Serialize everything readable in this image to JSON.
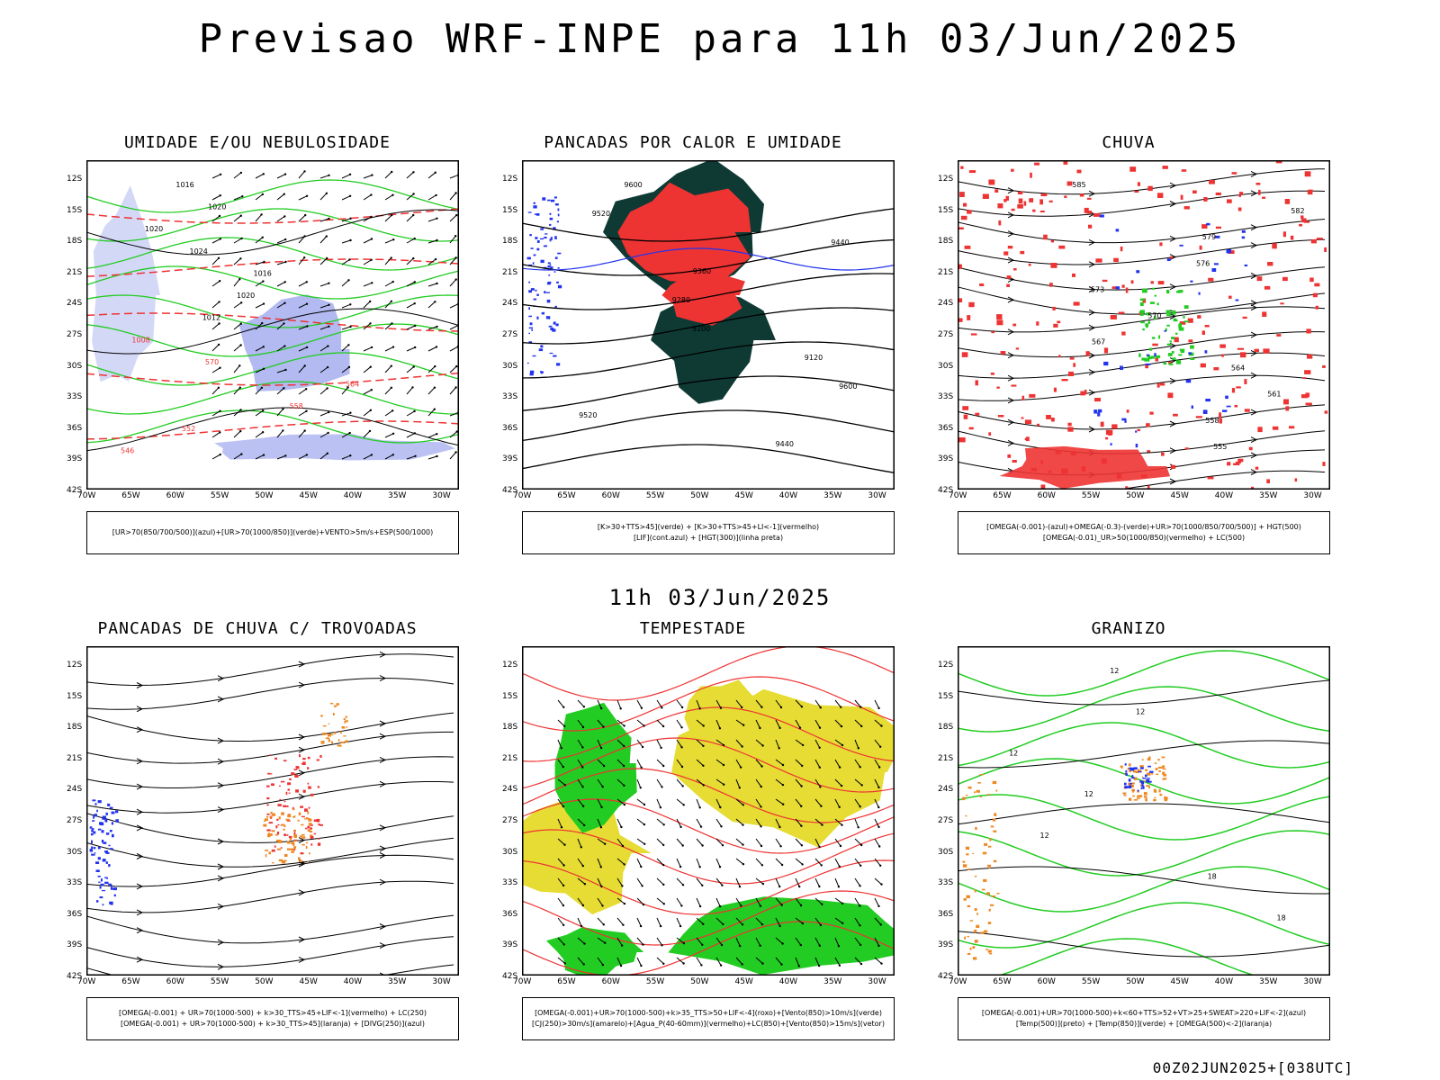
{
  "header": {
    "title": "Previsao WRF-INPE  para 11h 03/Jun/2025",
    "mid_date": "11h 03/Jun/2025",
    "footer": "00Z02JUN2025+[038UTC]"
  },
  "axes": {
    "lat_labels": [
      "12S",
      "15S",
      "18S",
      "21S",
      "24S",
      "27S",
      "30S",
      "33S",
      "36S",
      "39S",
      "42S"
    ],
    "lon_labels": [
      "70W",
      "65W",
      "60W",
      "55W",
      "50W",
      "45W",
      "40W",
      "35W",
      "30W"
    ]
  },
  "colors": {
    "blue": "#2233ee",
    "green": "#22cc22",
    "red": "#ee3333",
    "dark_green": "#0f3a34",
    "orange": "#ee8822",
    "yellow": "#e6dc33",
    "lavender": "#aab2f0",
    "magenta": "#cc22cc"
  },
  "panels": [
    {
      "title": "UMIDADE E/OU NEBULOSIDADE",
      "legend": [
        "[UR>70(850/700/500)](azul)+[UR>70(1000/850)](verde)+VENTO>5m/s+ESP(500/1000)"
      ],
      "labels": [
        "1016",
        "1020",
        "1020",
        "1024",
        "1016",
        "1020",
        "1012",
        "1008",
        "570",
        "564",
        "558",
        "552",
        "546"
      ]
    },
    {
      "title": "PANCADAS POR CALOR E UMIDADE",
      "legend": [
        "[K>30+TTS>45](verde) + [K>30+TTS>45+LI<-1](vermelho)",
        "[LIF](cont.azul) + [HGT(300)](linha preta)"
      ],
      "labels": [
        "9600",
        "9520",
        "9440",
        "9360",
        "9280",
        "9200",
        "9120",
        "9600",
        "9520",
        "9440"
      ]
    },
    {
      "title": "CHUVA",
      "legend": [
        "[OMEGA(-0.001)-(azul)+OMEGA(-0.3)-(verde)+UR>70(1000/850/700/500)] + HGT(500)",
        "[OMEGA(-0.01)_UR>50(1000/850)(vermelho) + LC(500)"
      ],
      "labels": [
        "585",
        "582",
        "579",
        "576",
        "573",
        "570",
        "567",
        "564",
        "561",
        "558",
        "555"
      ]
    },
    {
      "title": "PANCADAS DE CHUVA C/ TROVOADAS",
      "legend": [
        "[OMEGA(-0.001) + UR>70(1000-500) + k>30_TTS>45+LIF<-1](vermelho) + LC(250)",
        "[OMEGA(-0.001) + UR>70(1000-500) + k>30_TTS>45](laranja) + [DIVG(250)](azul)"
      ],
      "labels": []
    },
    {
      "title": "TEMPESTADE",
      "legend": [
        "[OMEGA(-0.001)+UR>70(1000-500)+k>35_TTS>50+LIF<-4](roxo)+[Vento(850)>10m/s](verde)",
        "[CJ(250)>30m/s](amarelo)+[Agua_P(40-60mm)](vermelho)+LC(850)+[Vento(850)>15m/s](vetor)"
      ],
      "labels": []
    },
    {
      "title": "GRANIZO",
      "legend": [
        "[OMEGA(-0.001)+UR>70(1000-500)+k<60+TTS>52+VT>25+SWEAT>220+LIF<-2](azul)",
        "[Temp(500)](preto) + [Temp(850)](verde) + [OMEGA(500)<-2](laranja)"
      ],
      "labels": [
        "12",
        "12",
        "12",
        "12",
        "12",
        "18",
        "18"
      ]
    }
  ]
}
